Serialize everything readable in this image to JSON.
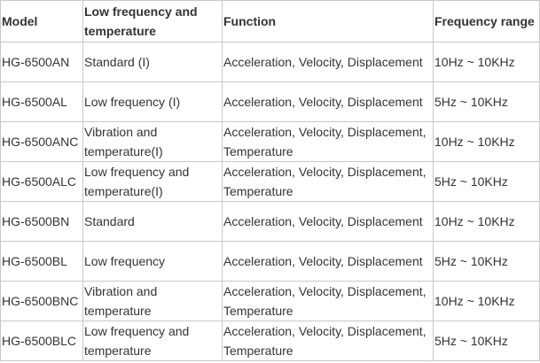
{
  "table": {
    "header": [
      "Model",
      "Low frequency and temperature",
      "Function",
      "Frequency range"
    ],
    "rows": [
      [
        "HG-6500AN",
        "Standard (I)",
        "Acceleration, Velocity, Displacement",
        "10Hz ~ 10KHz"
      ],
      [
        "HG-6500AL",
        "Low frequency (I)",
        "Acceleration, Velocity, Displacement",
        "5Hz ~ 10KHz"
      ],
      [
        "HG-6500ANC",
        "Vibration and temperature(I)",
        "Acceleration, Velocity, Displacement, Temperature",
        "10Hz ~ 10KHz"
      ],
      [
        "HG-6500ALC",
        "Low frequency and temperature(I)",
        "Acceleration, Velocity, Displacement, Temperature",
        "5Hz ~ 10KHz"
      ],
      [
        "HG-6500BN",
        "Standard",
        "Acceleration, Velocity, Displacement",
        "10Hz ~ 10KHz"
      ],
      [
        "HG-6500BL",
        "Low frequency",
        "Acceleration, Velocity, Displacement",
        "5Hz ~ 10KHz"
      ],
      [
        "HG-6500BNC",
        "Vibration and temperature",
        "Acceleration, Velocity, Displacement, Temperature",
        "10Hz ~ 10KHz"
      ],
      [
        "HG-6500BLC",
        "Low frequency and temperature",
        "Acceleration, Velocity, Displacement, Temperature",
        "5Hz ~ 10KHz"
      ]
    ]
  }
}
